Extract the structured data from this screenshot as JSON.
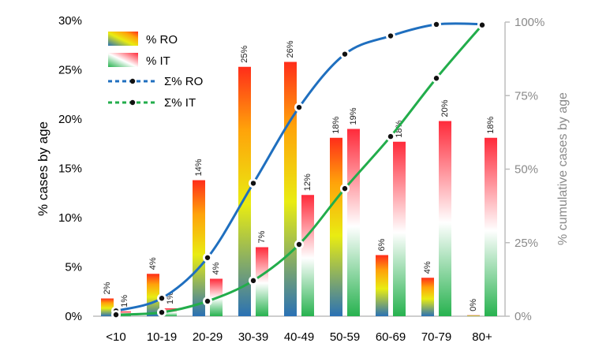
{
  "chart_data": {
    "type": "bar",
    "categories": [
      "<10",
      "10-19",
      "20-29",
      "30-39",
      "40-49",
      "50-59",
      "60-69",
      "70-79",
      "80+"
    ],
    "series": [
      {
        "name": "% RO",
        "type": "bar",
        "axis": "left",
        "values": [
          1.8,
          4.3,
          13.8,
          25.3,
          25.8,
          18.1,
          6.2,
          3.9,
          0.1
        ],
        "labels": [
          "2%",
          "4%",
          "14%",
          "25%",
          "26%",
          "18%",
          "6%",
          "4%",
          "0%"
        ]
      },
      {
        "name": "% IT",
        "type": "bar",
        "axis": "left",
        "values": [
          0.5,
          0.8,
          3.8,
          7.0,
          12.3,
          19.0,
          17.7,
          19.8,
          18.1
        ],
        "labels": [
          "1%",
          "1%",
          "4%",
          "7%",
          "12%",
          "19%",
          "18%",
          "20%",
          "18%"
        ]
      },
      {
        "name": "Σ% RO",
        "type": "line",
        "axis": "right",
        "values": [
          1.8,
          6.1,
          19.9,
          45.2,
          71.0,
          89.1,
          95.3,
          99.2,
          99.3
        ],
        "color": "#1f6fbf"
      },
      {
        "name": "Σ% IT",
        "type": "line",
        "axis": "right",
        "values": [
          0.5,
          1.3,
          5.1,
          12.1,
          24.4,
          43.4,
          61.1,
          80.9,
          99.0
        ],
        "color": "#22ad4b"
      }
    ],
    "ylabel": "% cases by age",
    "ylabel_right": "% cumulative cases by age",
    "ylim": [
      0,
      30
    ],
    "ylim_right": [
      0,
      100
    ],
    "yticks": [
      "0%",
      "5%",
      "10%",
      "15%",
      "20%",
      "25%",
      "30%"
    ],
    "yticks_right": [
      "0%",
      "25%",
      "50%",
      "75%",
      "100%"
    ],
    "legend_position": "top-left",
    "grid": false
  }
}
